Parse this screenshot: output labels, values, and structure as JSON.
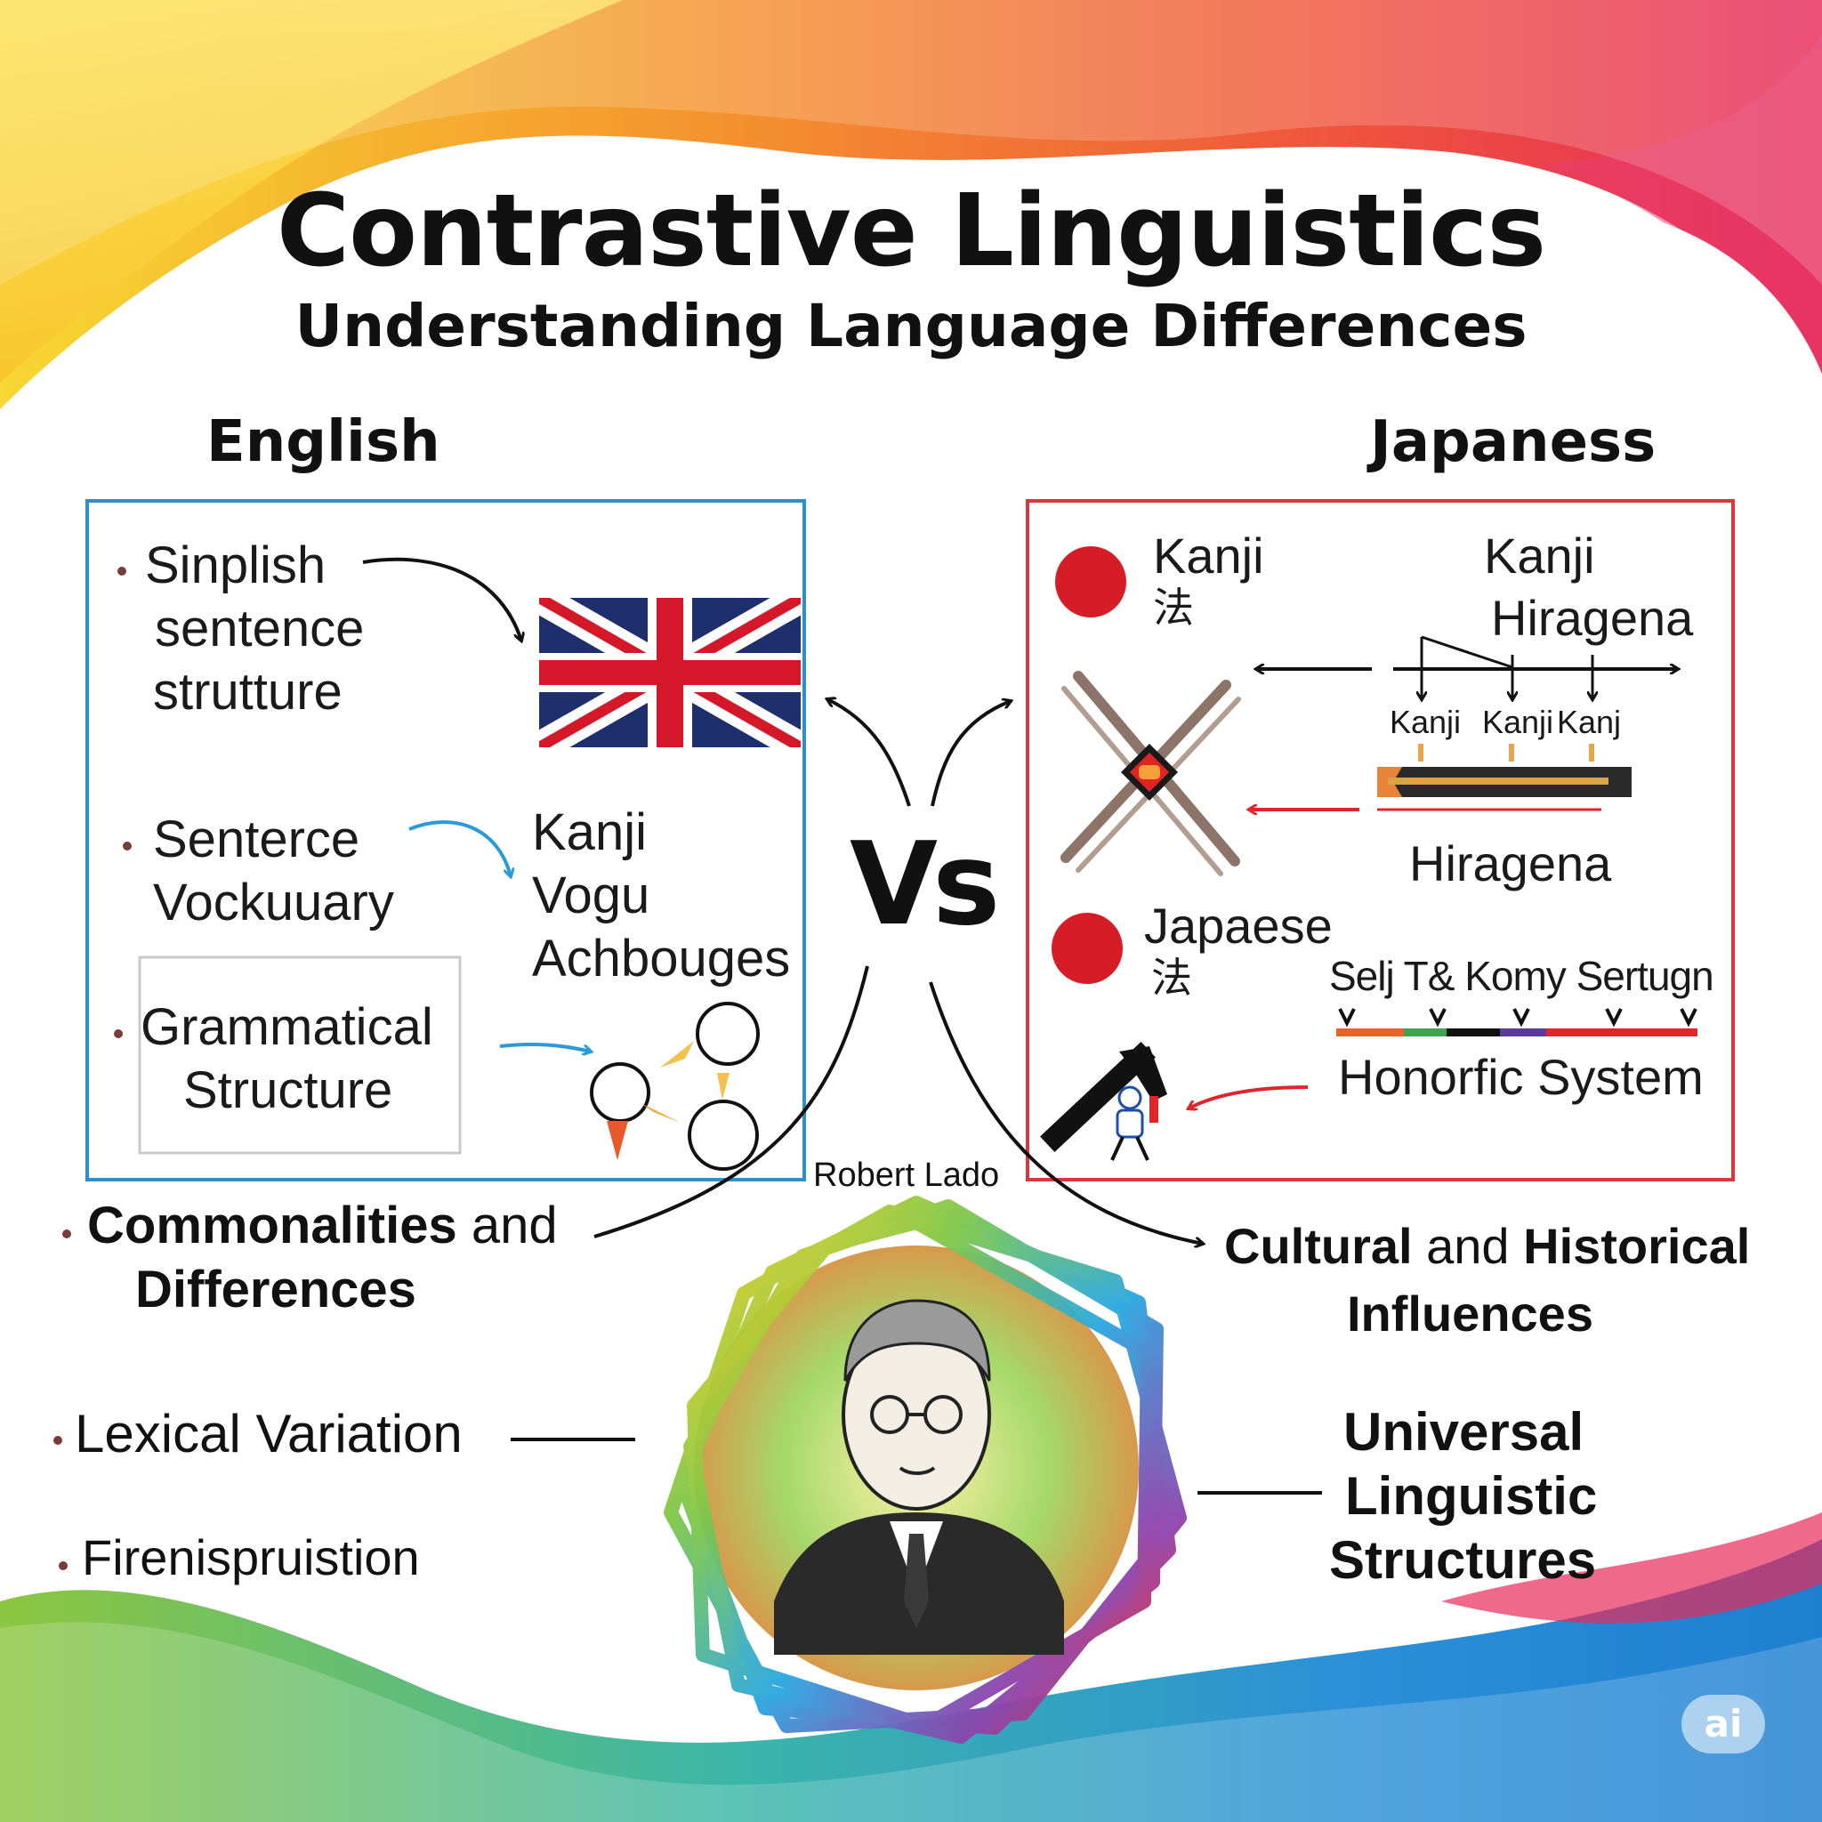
{
  "header": {
    "title": "Contrastive Linguistics",
    "subtitle": "Understanding Language Differences"
  },
  "english": {
    "heading": "English",
    "item1": [
      "Sinplish",
      "sentence",
      "strutture"
    ],
    "item2": [
      "Senterce",
      "Vockuuary"
    ],
    "item2_words": [
      "Kanji",
      "Vogu",
      "Achbouges"
    ],
    "item3": [
      "Grammatical",
      "Structure"
    ]
  },
  "japanese": {
    "heading": "Japaness",
    "kanji_label": "Kanji",
    "kanji_char": "法",
    "timeline_top1": "Kanji",
    "timeline_top2": "Hiragena",
    "tick_labels": [
      "Kanji",
      "Kanji",
      "Kanj"
    ],
    "hiragana_label": "Hiragena",
    "japanese_label": "Japaese",
    "japanese_char": "法",
    "scale_label": "Selj T& Komy Sertugn",
    "honorific_label": "Honorfic System"
  },
  "center": {
    "vs": "Vs",
    "portrait_label": "Robert Lado"
  },
  "bottom_left": {
    "commonalities_bold_1": "Commonalities",
    "commonalities_and": " and",
    "commonalities_bold_2": "Differences",
    "lexical": "Lexical Variation",
    "fireni": "Firenispruistion"
  },
  "bottom_right": {
    "cultural_bold_1": "Cultural",
    "cultural_and": " and ",
    "cultural_bold_2": "Historical",
    "cultural_line2": "Influences",
    "universal": [
      "Universal",
      "Linguistic",
      "Structures"
    ]
  },
  "badge": "ai",
  "colors": {
    "english_box": "#2e8fca",
    "japanese_box": "#d9363e",
    "japan_red": "#d61c24",
    "uk_blue": "#1e2f6e",
    "uk_red": "#d4182a",
    "accent_blue": "#2a9bd6",
    "accent_red": "#e0262c"
  },
  "icons": [
    "union-jack-flag-icon",
    "crossed-chopsticks-icon",
    "ruler-bar-icon",
    "circles-shapes-icon",
    "hammer-figure-icon",
    "portrait-wreath-icon"
  ]
}
